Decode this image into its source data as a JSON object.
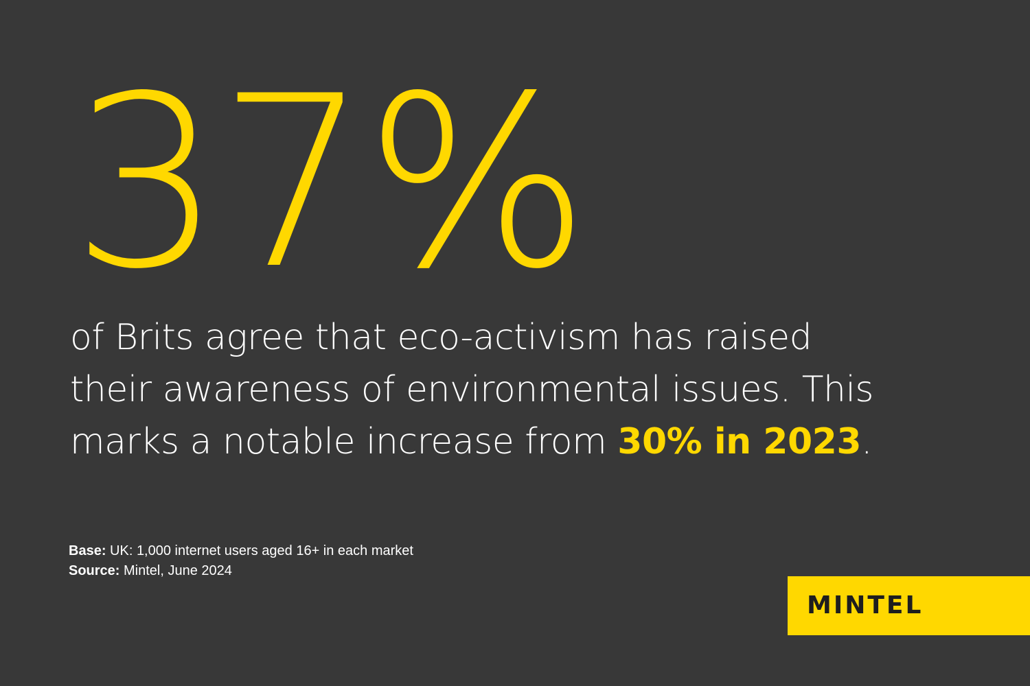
{
  "colors": {
    "background": "#383838",
    "accent": "#ffd800",
    "text": "#ffffff",
    "logo_text": "#1e1e1e"
  },
  "stat": {
    "value": "37%"
  },
  "statement": {
    "line1": "of Brits agree that eco-activism has raised",
    "line2": "their awareness of environmental issues. This",
    "line3_prefix": "marks a notable increase from ",
    "line3_highlight": "30% in 2023",
    "line3_suffix": "."
  },
  "notes": {
    "base_label": "Base:",
    "base_text": " UK: 1,000 internet users aged 16+ in each market",
    "source_label": "Source:",
    "source_text": " Mintel, June 2024"
  },
  "logo": {
    "text": "MINTEL"
  }
}
